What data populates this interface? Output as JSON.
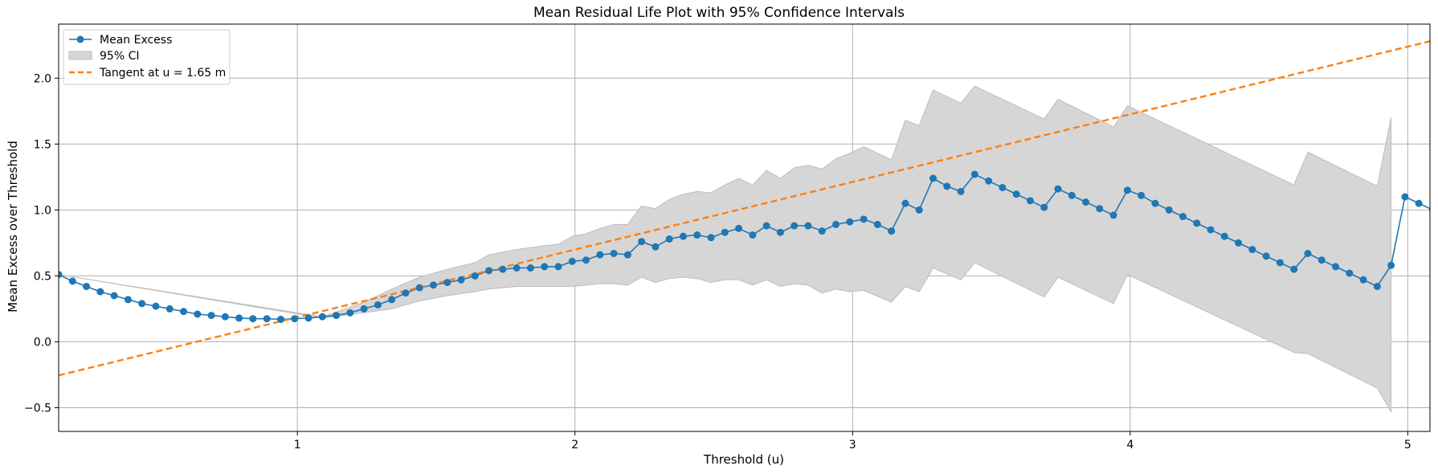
{
  "chart_data": {
    "type": "line",
    "title": "Mean Residual Life Plot with 95% Confidence Intervals",
    "xlabel": "Threshold (u)",
    "ylabel": "Mean Excess over Threshold",
    "xlim": [
      0.14,
      5.08
    ],
    "ylim": [
      -0.68,
      2.41
    ],
    "xticks": [
      1,
      2,
      3,
      4,
      5
    ],
    "yticks": [
      -0.5,
      0.0,
      0.5,
      1.0,
      1.5,
      2.0
    ],
    "xtick_labels": [
      "1",
      "2",
      "3",
      "4",
      "5"
    ],
    "ytick_labels": [
      "−0.5",
      "0.0",
      "0.5",
      "1.0",
      "1.5",
      "2.0"
    ],
    "grid": true,
    "legend_position": "top-left",
    "colors": {
      "mean": "#1f77b4",
      "ci": "#d6d6d6",
      "ci_edge": "#bdbdbd",
      "tangent": "#ff7f0e"
    },
    "series": [
      {
        "name": "Mean Excess",
        "style": "line-with-markers",
        "x": [
          0.14,
          0.19,
          0.24,
          0.29,
          0.34,
          0.39,
          0.44,
          0.49,
          0.54,
          0.59,
          0.64,
          0.69,
          0.74,
          0.79,
          0.84,
          0.89,
          0.94,
          0.99,
          1.04,
          1.09,
          1.14,
          1.19,
          1.24,
          1.29,
          1.34,
          1.39,
          1.44,
          1.49,
          1.54,
          1.59,
          1.64,
          1.69,
          1.74,
          1.79,
          1.84,
          1.89,
          1.94,
          1.99,
          2.04,
          2.09,
          2.14,
          2.19,
          2.24,
          2.29,
          2.34,
          2.39,
          2.44,
          2.49,
          2.54,
          2.59,
          2.64,
          2.69,
          2.74,
          2.79,
          2.84,
          2.89,
          2.94,
          2.99,
          3.04,
          3.09,
          3.14,
          3.19,
          3.24,
          3.29,
          3.34,
          3.39,
          3.44,
          3.49,
          3.54,
          3.59,
          3.64,
          3.69,
          3.74,
          3.79,
          3.84,
          3.89,
          3.94,
          3.99,
          4.04,
          4.09,
          4.14,
          4.19,
          4.24,
          4.29,
          4.34,
          4.39,
          4.44,
          4.49,
          4.54,
          4.59,
          4.64,
          4.69,
          4.74,
          4.79,
          4.84,
          4.89,
          4.94,
          4.99,
          5.04,
          5.09
        ],
        "y": [
          0.51,
          0.46,
          0.42,
          0.38,
          0.35,
          0.32,
          0.29,
          0.27,
          0.25,
          0.23,
          0.21,
          0.2,
          0.19,
          0.18,
          0.175,
          0.175,
          0.17,
          0.175,
          0.18,
          0.19,
          0.2,
          0.22,
          0.25,
          0.28,
          0.32,
          0.37,
          0.41,
          0.43,
          0.45,
          0.47,
          0.5,
          0.54,
          0.55,
          0.56,
          0.56,
          0.57,
          0.57,
          0.61,
          0.62,
          0.66,
          0.67,
          0.66,
          0.76,
          0.72,
          0.78,
          0.8,
          0.81,
          0.79,
          0.83,
          0.86,
          0.81,
          0.88,
          0.83,
          0.88,
          0.88,
          0.84,
          0.89,
          0.91,
          0.93,
          0.89,
          0.84,
          1.05,
          1.0,
          1.24,
          1.18,
          1.14,
          1.27,
          1.22,
          1.17,
          1.12,
          1.07,
          1.02,
          1.16,
          1.11,
          1.06,
          1.01,
          0.96,
          1.15,
          1.11,
          1.05,
          1.0,
          0.95,
          0.9,
          0.85,
          0.8,
          0.75,
          0.7,
          0.65,
          0.6,
          0.55,
          0.67,
          0.62,
          0.57,
          0.52,
          0.47,
          0.42,
          0.58,
          1.1,
          1.05,
          1.0
        ]
      },
      {
        "name": "95% CI",
        "style": "band",
        "x": [
          0.14,
          1.09,
          1.24,
          1.34,
          1.44,
          1.54,
          1.64,
          1.69,
          1.79,
          1.89,
          1.94,
          1.99,
          2.04,
          2.09,
          2.14,
          2.19,
          2.24,
          2.29,
          2.34,
          2.39,
          2.44,
          2.49,
          2.54,
          2.59,
          2.64,
          2.69,
          2.74,
          2.79,
          2.84,
          2.89,
          2.94,
          2.99,
          3.04,
          3.14,
          3.19,
          3.24,
          3.29,
          3.39,
          3.44,
          3.69,
          3.74,
          3.94,
          3.99,
          4.59,
          4.64,
          4.89,
          4.94
        ],
        "upper": [
          0.51,
          0.19,
          0.3,
          0.4,
          0.49,
          0.55,
          0.6,
          0.66,
          0.7,
          0.73,
          0.74,
          0.8,
          0.82,
          0.86,
          0.89,
          0.89,
          1.03,
          1.01,
          1.08,
          1.12,
          1.14,
          1.13,
          1.19,
          1.24,
          1.19,
          1.3,
          1.24,
          1.32,
          1.34,
          1.31,
          1.39,
          1.43,
          1.48,
          1.38,
          1.68,
          1.64,
          1.91,
          1.81,
          1.94,
          1.69,
          1.84,
          1.63,
          1.79,
          1.19,
          1.44,
          1.18,
          1.7
        ],
        "lower": [
          0.51,
          0.18,
          0.22,
          0.25,
          0.31,
          0.35,
          0.38,
          0.4,
          0.42,
          0.42,
          0.42,
          0.42,
          0.43,
          0.44,
          0.44,
          0.43,
          0.49,
          0.45,
          0.48,
          0.49,
          0.48,
          0.45,
          0.47,
          0.47,
          0.43,
          0.47,
          0.42,
          0.44,
          0.43,
          0.37,
          0.4,
          0.38,
          0.39,
          0.3,
          0.42,
          0.38,
          0.56,
          0.47,
          0.6,
          0.34,
          0.49,
          0.29,
          0.51,
          -0.08,
          -0.09,
          -0.35,
          -0.53
        ]
      },
      {
        "name": "Tangent at u = 1.65 m",
        "style": "dashed",
        "x": [
          0.14,
          5.08
        ],
        "y": [
          -0.255,
          2.28
        ]
      }
    ]
  }
}
